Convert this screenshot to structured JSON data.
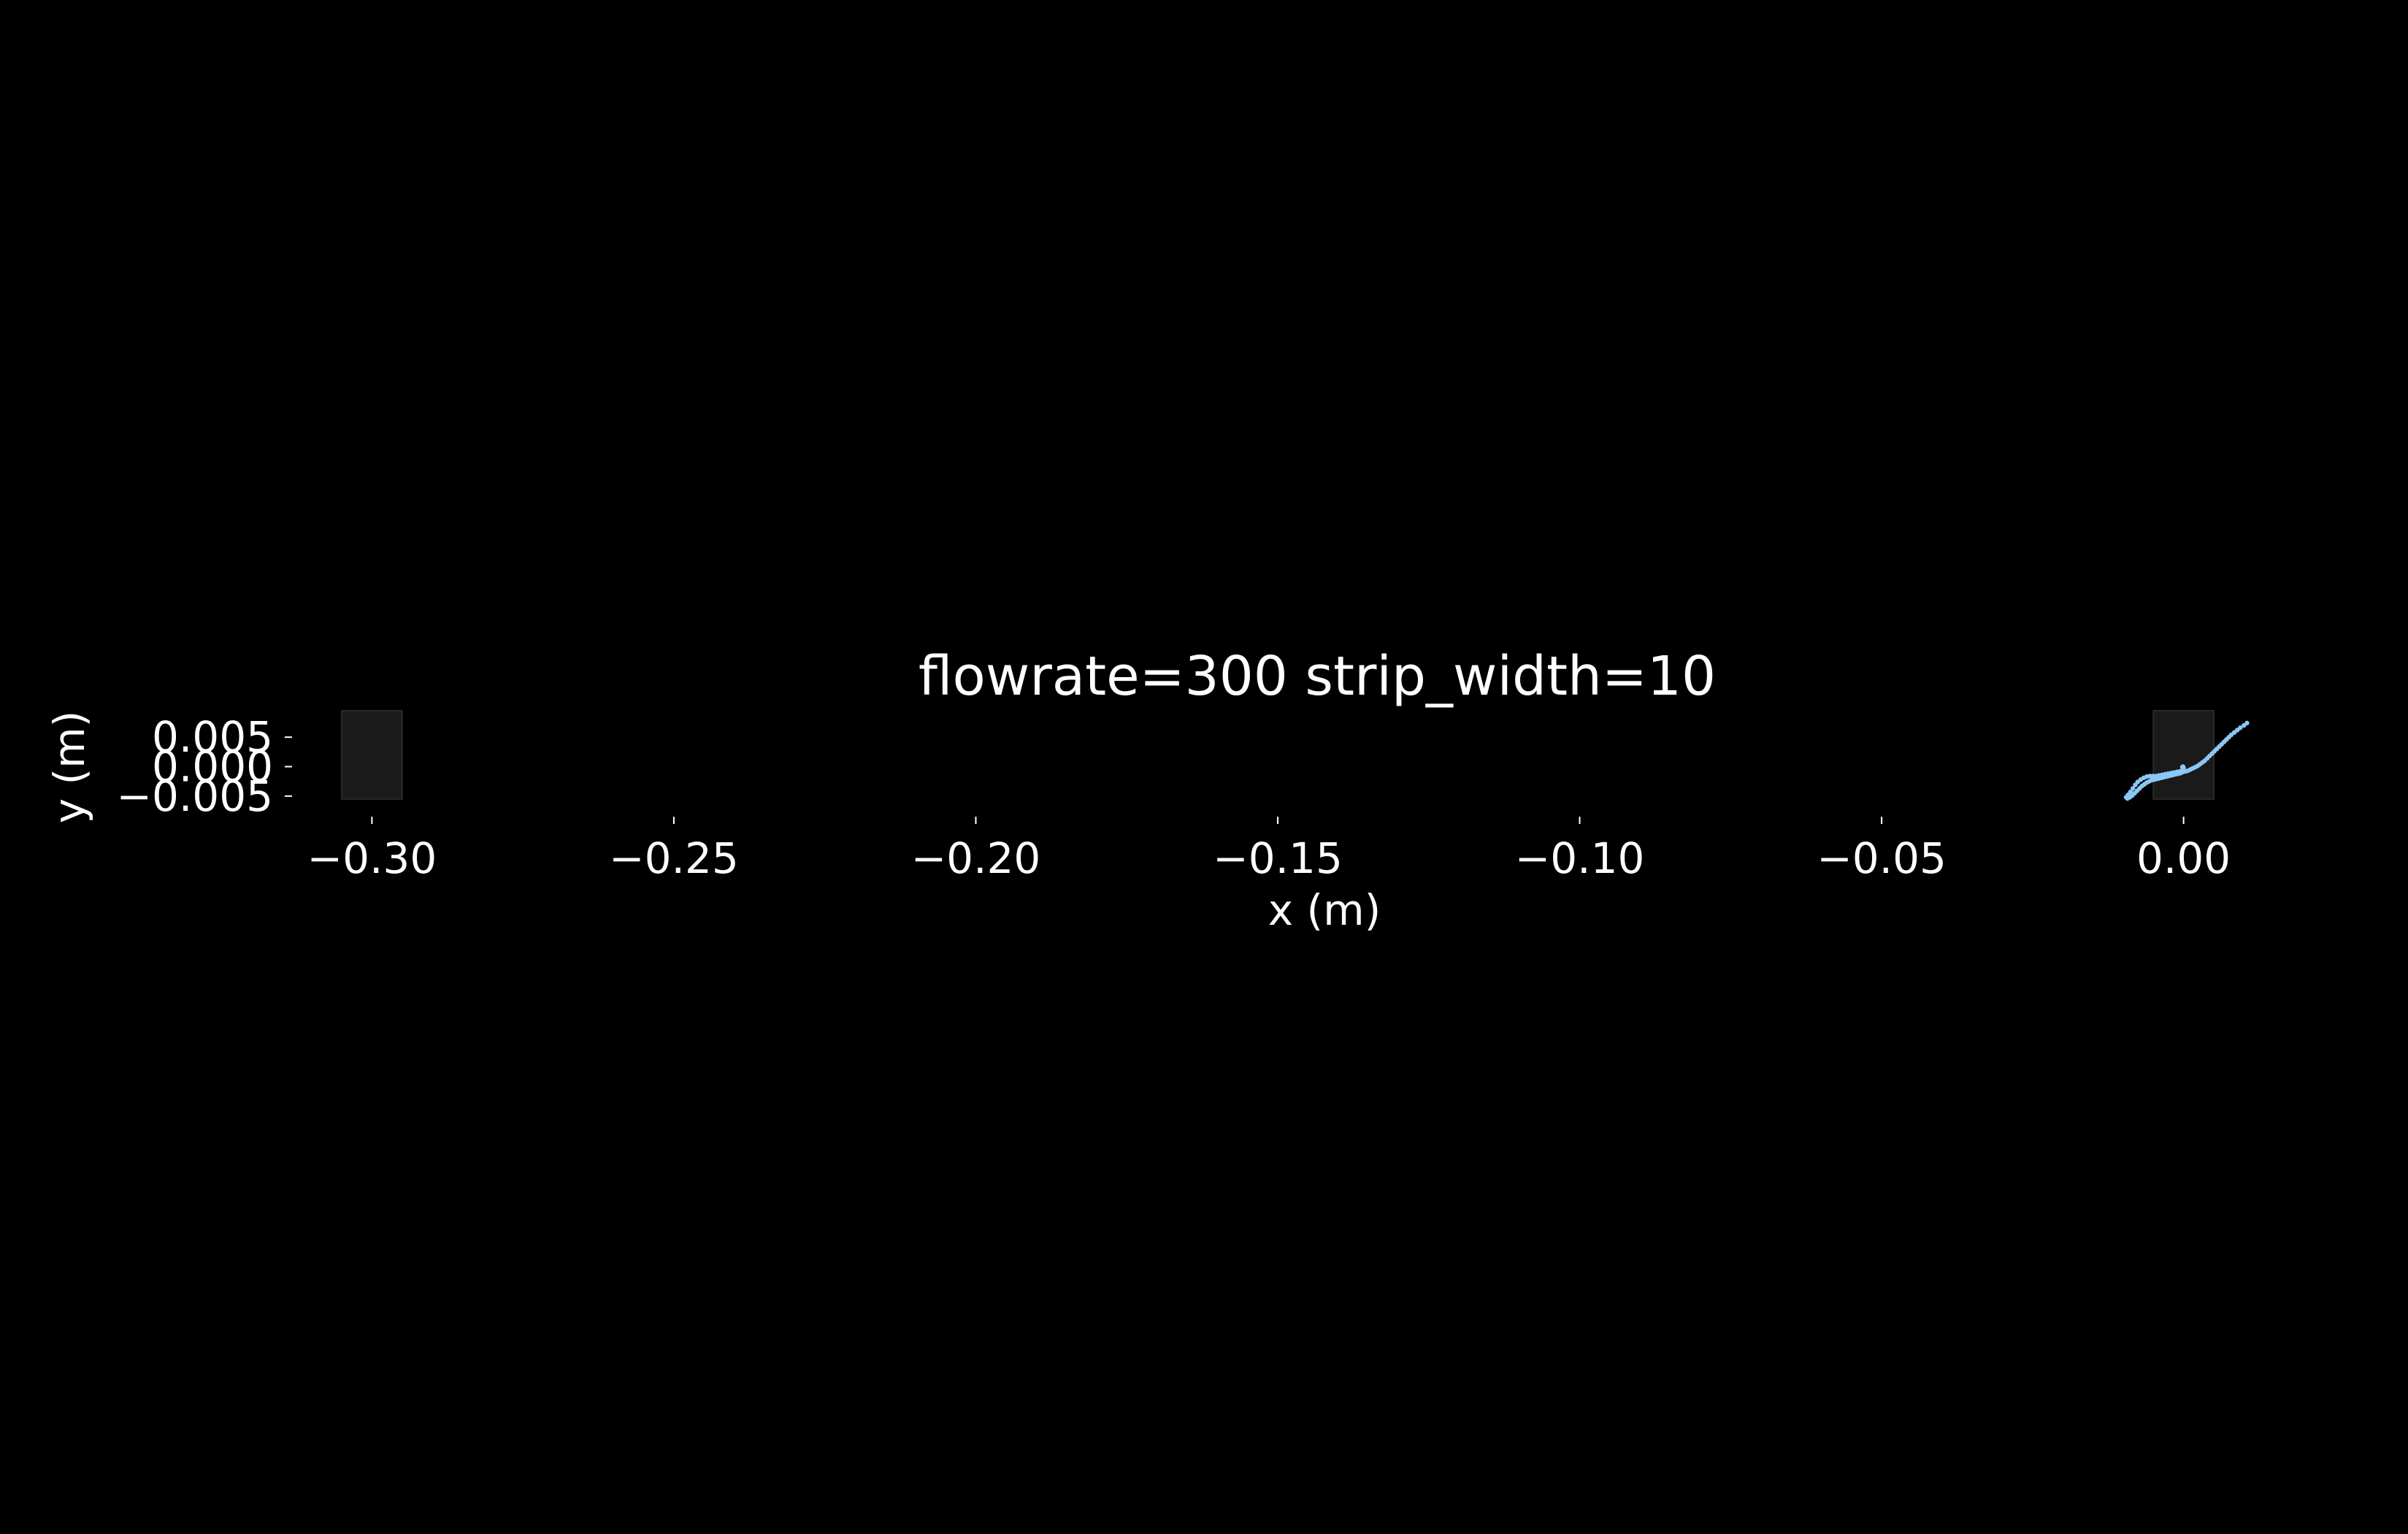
{
  "chart_data": {
    "type": "scatter",
    "title": "flowrate=300 strip_width=10",
    "xlabel": "x (m)",
    "ylabel": "y (m)",
    "xlim": [
      -0.3125,
      0.0125
    ],
    "ylim": [
      -0.0075,
      0.0075
    ],
    "xticks": [
      -0.3,
      -0.25,
      -0.2,
      -0.15,
      -0.1,
      -0.05,
      0.0
    ],
    "xtick_labels": [
      "−0.30",
      "−0.25",
      "−0.20",
      "−0.15",
      "−0.10",
      "−0.05",
      "0.00"
    ],
    "yticks": [
      0.005,
      0.0,
      -0.005
    ],
    "ytick_labels": [
      "0.005",
      "0.000",
      "−0.005"
    ],
    "grid": false,
    "background": "#000000",
    "foreground": "#ffffff",
    "rectangles": [
      {
        "name": "left-strip",
        "x0": -0.305,
        "x1": -0.295,
        "y0": -0.0055,
        "y1": 0.0095,
        "color": "#1a1a1a"
      },
      {
        "name": "right-strip",
        "x0": -0.005,
        "x1": 0.005,
        "y0": -0.0055,
        "y1": 0.0095,
        "color": "#1a1a1a"
      }
    ],
    "series": [
      {
        "color": "#8cc8f5",
        "points": [
          [
            -0.0095,
            -0.0052
          ],
          [
            -0.0092,
            -0.0048
          ],
          [
            -0.0088,
            -0.0043
          ],
          [
            -0.0084,
            -0.0037
          ],
          [
            -0.008,
            -0.0031
          ],
          [
            -0.0076,
            -0.0026
          ],
          [
            -0.0071,
            -0.0022
          ],
          [
            -0.0066,
            -0.0019
          ],
          [
            -0.0061,
            -0.0017
          ],
          [
            -0.0056,
            -0.0016
          ],
          [
            -0.0051,
            -0.0016
          ],
          [
            -0.0046,
            -0.0016
          ],
          [
            -0.0041,
            -0.0015
          ],
          [
            -0.0036,
            -0.0014
          ],
          [
            -0.0031,
            -0.0013
          ],
          [
            -0.0026,
            -0.0012
          ],
          [
            -0.0021,
            -0.0011
          ],
          [
            -0.0016,
            -0.001
          ],
          [
            -0.0011,
            -0.0009
          ],
          [
            -0.0006,
            -0.0008
          ],
          [
            -0.0002,
            -0.0007
          ],
          [
            -0.0093,
            -0.0054
          ],
          [
            -0.0089,
            -0.0052
          ],
          [
            -0.0085,
            -0.0049
          ],
          [
            -0.0081,
            -0.0045
          ],
          [
            -0.0077,
            -0.0041
          ],
          [
            -0.0073,
            -0.0037
          ],
          [
            -0.0069,
            -0.0033
          ],
          [
            -0.0065,
            -0.003
          ],
          [
            -0.0061,
            -0.0027
          ],
          [
            -0.0057,
            -0.0025
          ],
          [
            -0.0053,
            -0.0023
          ],
          [
            -0.0049,
            -0.0022
          ],
          [
            -0.0045,
            -0.0021
          ],
          [
            -0.0041,
            -0.002
          ],
          [
            -0.0037,
            -0.0019
          ],
          [
            -0.0033,
            -0.0018
          ],
          [
            -0.0029,
            -0.0017
          ],
          [
            -0.0025,
            -0.0016
          ],
          [
            -0.0021,
            -0.0015
          ],
          [
            -0.0017,
            -0.0014
          ],
          [
            -0.0013,
            -0.0013
          ],
          [
            -0.0009,
            -0.0012
          ],
          [
            -0.0005,
            -0.0011
          ],
          [
            -0.0001,
            -0.0009
          ],
          [
            0.0003,
            -0.0008
          ],
          [
            0.0007,
            -0.0007
          ],
          [
            0.0011,
            -0.0005
          ],
          [
            0.0015,
            -0.0003
          ],
          [
            0.0019,
            -0.0001
          ],
          [
            0.0023,
            0.0001
          ],
          [
            0.0027,
            0.0004
          ],
          [
            0.0031,
            0.0007
          ],
          [
            0.0035,
            0.001
          ],
          [
            0.0039,
            0.0014
          ],
          [
            0.0043,
            0.0018
          ],
          [
            0.0047,
            0.0022
          ],
          [
            0.0051,
            0.0026
          ],
          [
            0.0055,
            0.003
          ],
          [
            0.0059,
            0.0034
          ],
          [
            0.0063,
            0.0038
          ],
          [
            0.0067,
            0.0042
          ],
          [
            0.0071,
            0.0046
          ],
          [
            0.0075,
            0.005
          ],
          [
            0.0079,
            0.0054
          ],
          [
            0.0084,
            0.0058
          ],
          [
            0.0089,
            0.0062
          ],
          [
            0.0094,
            0.0066
          ],
          [
            0.01,
            0.007
          ],
          [
            0.0105,
            0.0074
          ],
          [
            0.0,
            -0.0002
          ],
          [
            -0.0001,
            0.0
          ],
          [
            -0.0002,
            -0.0001
          ]
        ]
      }
    ]
  }
}
